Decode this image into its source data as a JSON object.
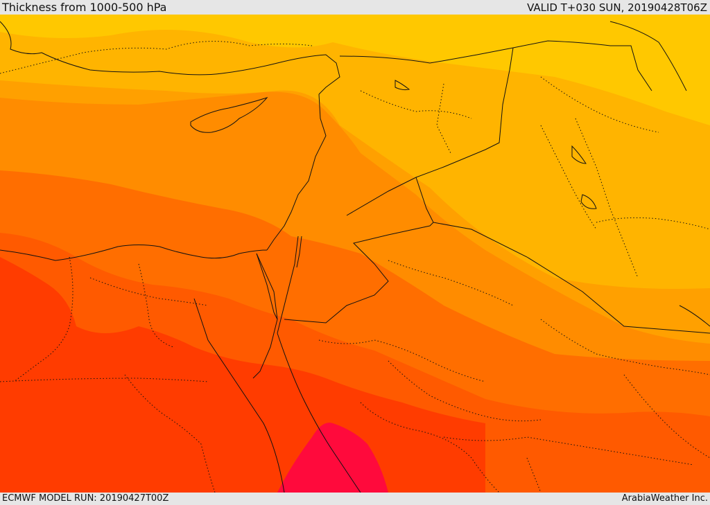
{
  "header": {
    "title": "Thickness from 1000-500 hPa",
    "valid": "VALID T+030 SUN, 20190428T06Z"
  },
  "footer": {
    "model_run": "ECMWF MODEL RUN: 20190427T00Z",
    "credit": "ArabiaWeather Inc."
  },
  "map": {
    "variable": "1000-500 hPa thickness",
    "bands": [
      {
        "name": "band-1",
        "color": "#ffc800"
      },
      {
        "name": "band-2",
        "color": "#ffb400"
      },
      {
        "name": "band-3",
        "color": "#ffa000"
      },
      {
        "name": "band-4",
        "color": "#ff8c00"
      },
      {
        "name": "band-5",
        "color": "#ff6e00"
      },
      {
        "name": "band-6",
        "color": "#ff5a00"
      },
      {
        "name": "band-7",
        "color": "#ff3c00"
      },
      {
        "name": "band-8",
        "color": "#ff0a3c"
      }
    ],
    "coastline_color": "#111111",
    "border_style": "dotted"
  }
}
